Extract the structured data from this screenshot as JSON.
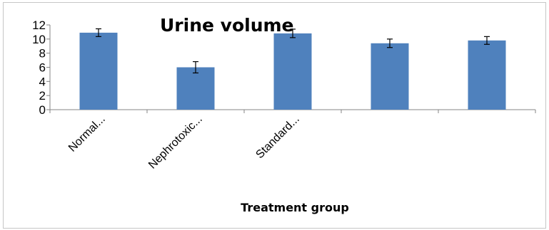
{
  "chart_data": {
    "type": "bar",
    "title": "Urine volume",
    "xlabel": "Treatment group",
    "ylabel": "",
    "categories": [
      "Normal...",
      "Nephrotoxic...",
      "Standard...",
      "",
      ""
    ],
    "values": [
      10.9,
      6.0,
      10.8,
      9.4,
      9.8
    ],
    "errors": [
      0.55,
      0.8,
      0.6,
      0.6,
      0.55
    ],
    "ylim": [
      0,
      12
    ],
    "yticks": [
      0,
      2,
      4,
      6,
      8,
      10,
      12
    ],
    "grid": false,
    "legend": "none",
    "bar_color": "#4f81bd"
  }
}
